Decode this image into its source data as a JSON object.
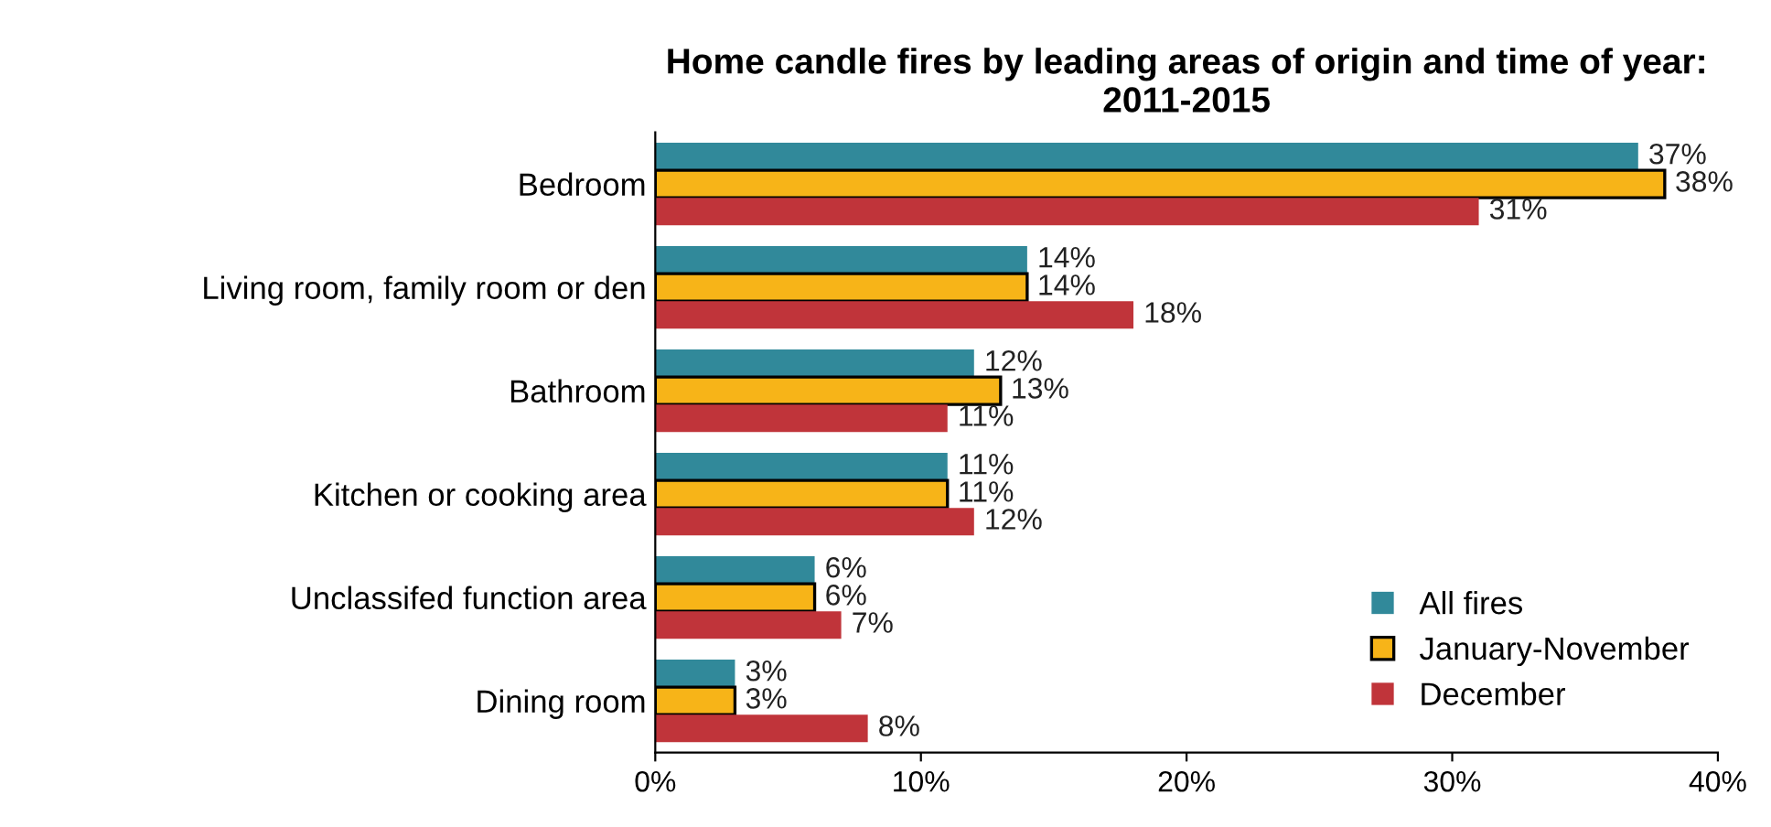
{
  "chart_data": {
    "type": "bar",
    "orientation": "horizontal",
    "title": "Home candle fires by leading areas of origin and time of year:\n2011-2015",
    "categories": [
      "Bedroom",
      "Living room, family room or den",
      "Bathroom",
      "Kitchen or cooking area",
      "Unclassifed function area",
      "Dining room"
    ],
    "series": [
      {
        "name": "All fires",
        "color": "#31899a",
        "values": [
          37,
          14,
          12,
          11,
          6,
          3
        ],
        "value_labels": [
          "37%",
          "14%",
          "12%",
          "11%",
          "6%",
          "3%"
        ]
      },
      {
        "name": "January-November",
        "color": "#f7b418",
        "values": [
          38,
          14,
          13,
          11,
          6,
          3
        ],
        "value_labels": [
          "38%",
          "14%",
          "13%",
          "11%",
          "6%",
          "3%"
        ]
      },
      {
        "name": "December",
        "color": "#c0343a",
        "values": [
          31,
          18,
          11,
          12,
          7,
          8
        ],
        "value_labels": [
          "31%",
          "18%",
          "11%",
          "12%",
          "7%",
          "8%"
        ]
      }
    ],
    "xlim": [
      0,
      40
    ],
    "xticks": [
      {
        "value": 0,
        "label": "0%"
      },
      {
        "value": 10,
        "label": "10%"
      },
      {
        "value": 20,
        "label": "20%"
      },
      {
        "value": 30,
        "label": "30%"
      },
      {
        "value": 40,
        "label": "40%"
      }
    ],
    "grid": false,
    "legend": "bottom right"
  }
}
